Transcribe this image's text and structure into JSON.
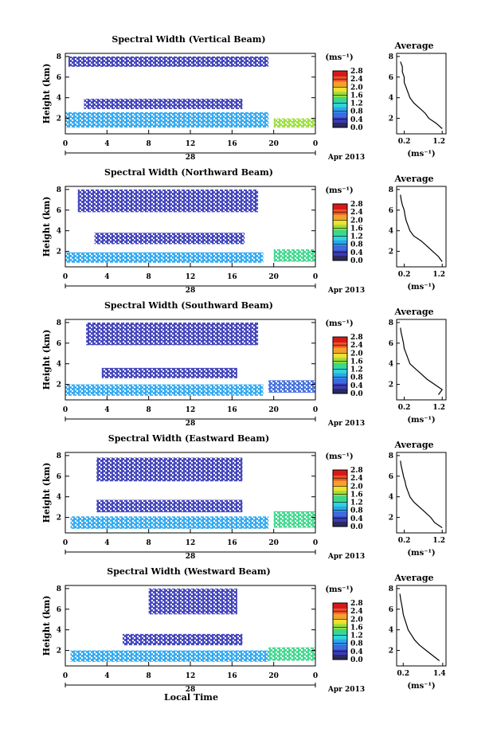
{
  "figure": {
    "xlabel": "Local Time",
    "x_ticks": [
      "0",
      "4",
      "8",
      "12",
      "16",
      "20",
      "0"
    ],
    "date_label": "28",
    "month_label": "Apr 2013",
    "ylabel": "Height (km)",
    "y_ticks": [
      "2",
      "4",
      "6",
      "8"
    ],
    "colorbar_unit": "(ms⁻¹)",
    "colorbar_ticks": [
      "0.0",
      "0.4",
      "0.8",
      "1.2",
      "1.6",
      "2.0",
      "2.4",
      "2.8"
    ],
    "colorbar_colors": [
      "#2a2a5e",
      "#3a3cb8",
      "#3d6ae0",
      "#2aa6f0",
      "#2fd6d6",
      "#3ad88a",
      "#9ade3a",
      "#f0e030",
      "#f5a02a",
      "#f05228",
      "#d81818"
    ],
    "avg_title": "Average",
    "avg_xlabel": "(ms⁻¹)",
    "avg_y_ticks": [
      "2",
      "4",
      "6",
      "8"
    ]
  },
  "chart_data": [
    {
      "type": "heatmap",
      "title": "Spectral Width (Vertical Beam)",
      "ylabel": "Height (km)",
      "xlabel": "",
      "x_ticks": [
        "0",
        "4",
        "8",
        "12",
        "16",
        "20",
        "0"
      ],
      "xlim_hours": [
        0,
        24
      ],
      "ylim_km": [
        0.5,
        8.3
      ],
      "colorbar": {
        "label": "(ms⁻¹)",
        "range": [
          0.0,
          2.8
        ]
      },
      "layers": [
        {
          "x_hours": [
            0.3,
            19.5
          ],
          "y_km": [
            7.0,
            8.0
          ],
          "level": 0.3
        },
        {
          "x_hours": [
            1.8,
            17.0
          ],
          "y_km": [
            2.9,
            3.9
          ],
          "level": 0.4
        },
        {
          "x_hours": [
            0.0,
            19.5
          ],
          "y_km": [
            1.1,
            2.6
          ],
          "level": 0.9
        },
        {
          "x_hours": [
            20.0,
            24.0
          ],
          "y_km": [
            1.1,
            2.0
          ],
          "level": 1.6
        }
      ],
      "average": {
        "title": "Average",
        "xticks": [
          "0.2",
          "1.2"
        ],
        "xlim": [
          0.0,
          1.3
        ],
        "height_km": [
          1.0,
          1.5,
          2.0,
          2.5,
          3.0,
          3.5,
          4.0,
          4.5,
          5.0,
          5.5,
          6.0,
          6.5,
          7.0,
          7.5
        ],
        "width_ms": [
          1.2,
          1.05,
          0.85,
          0.75,
          0.6,
          0.45,
          0.35,
          0.3,
          0.25,
          0.2,
          0.2,
          0.15,
          0.15,
          0.1
        ]
      }
    },
    {
      "type": "heatmap",
      "title": "Spectral Width (Northward Beam)",
      "ylabel": "Height (km)",
      "xlabel": "",
      "x_ticks": [
        "0",
        "4",
        "8",
        "12",
        "16",
        "20",
        "0"
      ],
      "xlim_hours": [
        0,
        24
      ],
      "ylim_km": [
        0.5,
        8.3
      ],
      "colorbar": {
        "label": "(ms⁻¹)",
        "range": [
          0.0,
          2.8
        ]
      },
      "layers": [
        {
          "x_hours": [
            1.2,
            18.5
          ],
          "y_km": [
            5.8,
            8.0
          ],
          "level": 0.3
        },
        {
          "x_hours": [
            2.8,
            17.2
          ],
          "y_km": [
            2.7,
            3.8
          ],
          "level": 0.4
        },
        {
          "x_hours": [
            0.0,
            19.0
          ],
          "y_km": [
            0.9,
            1.9
          ],
          "level": 0.9
        },
        {
          "x_hours": [
            20.0,
            24.0
          ],
          "y_km": [
            1.0,
            2.2
          ],
          "level": 1.5
        }
      ],
      "average": {
        "title": "Average",
        "xticks": [
          "0.2",
          "1.2"
        ],
        "xlim": [
          0.0,
          1.3
        ],
        "height_km": [
          1.0,
          1.5,
          2.0,
          2.5,
          3.0,
          3.5,
          4.0,
          4.5,
          5.0,
          5.5,
          6.0,
          6.5,
          7.0,
          7.5
        ],
        "width_ms": [
          1.2,
          1.1,
          0.95,
          0.8,
          0.65,
          0.45,
          0.35,
          0.3,
          0.25,
          0.22,
          0.2,
          0.15,
          0.12,
          0.1
        ]
      }
    },
    {
      "type": "heatmap",
      "title": "Spectral Width (Southward Beam)",
      "ylabel": "Height (km)",
      "xlabel": "",
      "x_ticks": [
        "0",
        "4",
        "8",
        "12",
        "16",
        "20",
        "0"
      ],
      "xlim_hours": [
        0,
        24
      ],
      "ylim_km": [
        0.5,
        8.3
      ],
      "colorbar": {
        "label": "(ms⁻¹)",
        "range": [
          0.0,
          2.8
        ]
      },
      "layers": [
        {
          "x_hours": [
            2.0,
            18.5
          ],
          "y_km": [
            5.8,
            8.0
          ],
          "level": 0.3
        },
        {
          "x_hours": [
            3.5,
            16.5
          ],
          "y_km": [
            2.6,
            3.6
          ],
          "level": 0.4
        },
        {
          "x_hours": [
            0.0,
            19.0
          ],
          "y_km": [
            0.9,
            2.0
          ],
          "level": 0.9
        },
        {
          "x_hours": [
            19.5,
            24.0
          ],
          "y_km": [
            1.2,
            2.4
          ],
          "level": 0.6
        }
      ],
      "average": {
        "title": "Average",
        "xticks": [
          "0.2",
          "1.2"
        ],
        "xlim": [
          0.0,
          1.3
        ],
        "height_km": [
          1.0,
          1.5,
          2.0,
          2.5,
          3.0,
          3.5,
          4.0,
          4.5,
          5.0,
          5.5,
          6.0,
          6.5,
          7.0,
          7.5
        ],
        "width_ms": [
          1.1,
          1.2,
          1.0,
          0.8,
          0.65,
          0.5,
          0.35,
          0.3,
          0.25,
          0.2,
          0.18,
          0.15,
          0.12,
          0.1
        ]
      }
    },
    {
      "type": "heatmap",
      "title": "Spectral Width (Eastward Beam)",
      "ylabel": "Height (km)",
      "xlabel": "",
      "x_ticks": [
        "0",
        "4",
        "8",
        "12",
        "16",
        "20",
        "0"
      ],
      "xlim_hours": [
        0,
        24
      ],
      "ylim_km": [
        0.5,
        8.3
      ],
      "colorbar": {
        "label": "(ms⁻¹)",
        "range": [
          0.0,
          2.8
        ]
      },
      "layers": [
        {
          "x_hours": [
            3.0,
            17.0
          ],
          "y_km": [
            5.5,
            7.8
          ],
          "level": 0.3
        },
        {
          "x_hours": [
            3.0,
            17.0
          ],
          "y_km": [
            2.5,
            3.7
          ],
          "level": 0.4
        },
        {
          "x_hours": [
            0.5,
            19.5
          ],
          "y_km": [
            0.9,
            2.1
          ],
          "level": 0.9
        },
        {
          "x_hours": [
            20.0,
            24.0
          ],
          "y_km": [
            1.0,
            2.6
          ],
          "level": 1.4
        }
      ],
      "average": {
        "title": "Average",
        "xticks": [
          "0.2",
          "1.2"
        ],
        "xlim": [
          0.0,
          1.3
        ],
        "height_km": [
          1.0,
          1.5,
          2.0,
          2.5,
          3.0,
          3.5,
          4.0,
          4.5,
          5.0,
          5.5,
          6.0,
          6.5,
          7.0,
          7.5
        ],
        "width_ms": [
          1.2,
          1.0,
          0.9,
          0.75,
          0.6,
          0.45,
          0.35,
          0.3,
          0.25,
          0.22,
          0.18,
          0.15,
          0.12,
          0.1
        ]
      }
    },
    {
      "type": "heatmap",
      "title": "Spectral Width (Westward Beam)",
      "ylabel": "Height (km)",
      "xlabel": "Local Time",
      "x_ticks": [
        "0",
        "4",
        "8",
        "12",
        "16",
        "20",
        "0"
      ],
      "xlim_hours": [
        0,
        24
      ],
      "ylim_km": [
        0.5,
        8.3
      ],
      "colorbar": {
        "label": "(ms⁻¹)",
        "range": [
          0.0,
          2.8
        ]
      },
      "layers": [
        {
          "x_hours": [
            8.0,
            16.5
          ],
          "y_km": [
            5.5,
            8.0
          ],
          "level": 0.3
        },
        {
          "x_hours": [
            5.5,
            17.0
          ],
          "y_km": [
            2.5,
            3.6
          ],
          "level": 0.4
        },
        {
          "x_hours": [
            0.5,
            19.5
          ],
          "y_km": [
            0.9,
            2.0
          ],
          "level": 0.9
        },
        {
          "x_hours": [
            19.5,
            24.0
          ],
          "y_km": [
            1.0,
            2.3
          ],
          "level": 1.3
        }
      ],
      "average": {
        "title": "Average",
        "xticks": [
          "0.2",
          "1.4"
        ],
        "xlim": [
          0.0,
          1.5
        ],
        "height_km": [
          1.0,
          1.5,
          2.0,
          2.5,
          3.0,
          3.5,
          4.0,
          4.5,
          5.0,
          5.5,
          6.0,
          6.5,
          7.0,
          7.5
        ],
        "width_ms": [
          1.3,
          1.1,
          0.9,
          0.7,
          0.55,
          0.45,
          0.35,
          0.3,
          0.25,
          0.2,
          0.18,
          0.15,
          0.12,
          0.1
        ]
      }
    }
  ]
}
